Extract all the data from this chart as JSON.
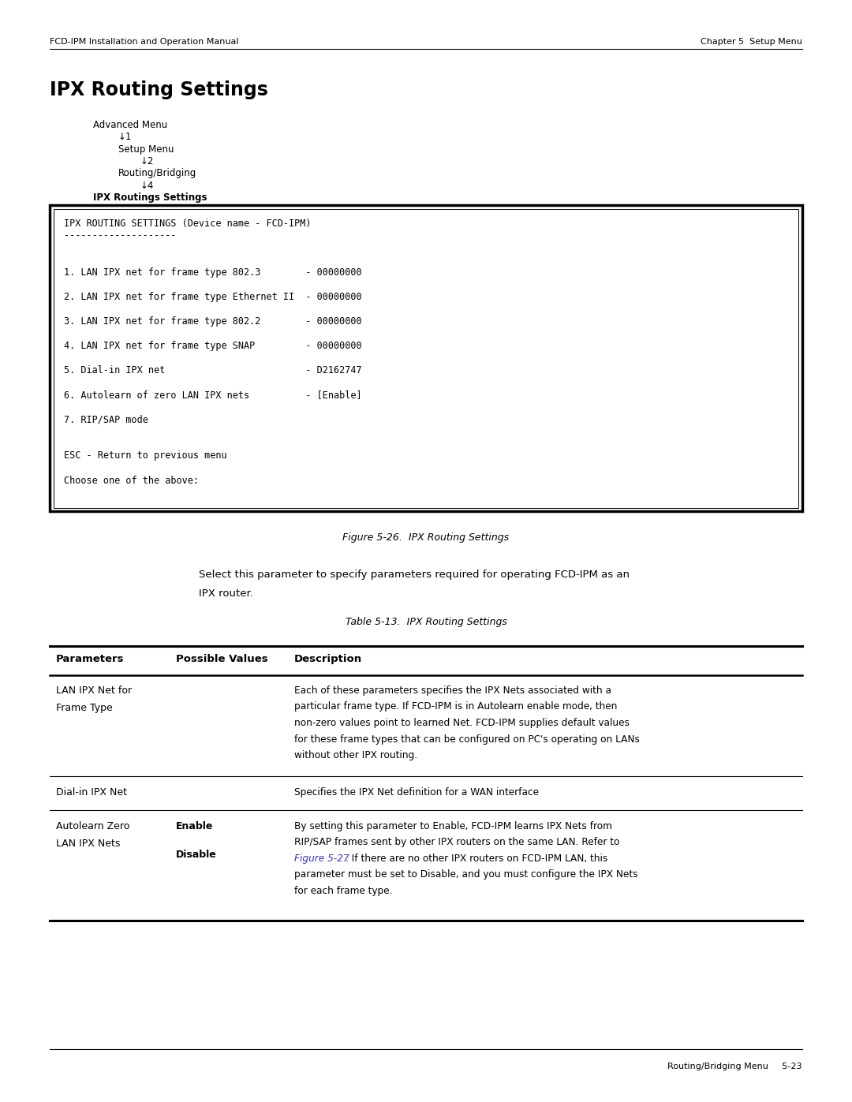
{
  "page_width": 10.8,
  "page_height": 13.97,
  "bg_color": "#ffffff",
  "header_left": "FCD-IPM Installation and Operation Manual",
  "header_right": "Chapter 5  Setup Menu",
  "footer_right": "Routing/Bridging Menu     5-23",
  "title": "IPX Routing Settings",
  "breadcrumb": [
    {
      "text": "Advanced Menu",
      "indent": 0
    },
    {
      "text": "↓1",
      "indent": 1
    },
    {
      "text": "Setup Menu",
      "indent": 1
    },
    {
      "text": "↓2",
      "indent": 2
    },
    {
      "text": "Routing/Bridging",
      "indent": 1
    },
    {
      "text": "↓4",
      "indent": 2
    },
    {
      "text": "IPX Routings Settings",
      "indent": 0,
      "bold": true
    }
  ],
  "terminal_lines": [
    "IPX ROUTING SETTINGS (Device name - FCD-IPM)",
    "--------------------",
    "",
    "",
    "1. LAN IPX net for frame type 802.3        - 00000000",
    "",
    "2. LAN IPX net for frame type Ethernet II  - 00000000",
    "",
    "3. LAN IPX net for frame type 802.2        - 00000000",
    "",
    "4. LAN IPX net for frame type SNAP         - 00000000",
    "",
    "5. Dial-in IPX net                         - D2162747",
    "",
    "6. Autolearn of zero LAN IPX nets          - [Enable]",
    "",
    "7. RIP/SAP mode",
    "",
    "",
    "ESC - Return to previous menu",
    "",
    "Choose one of the above:"
  ],
  "figure_caption": "Figure 5-26.  IPX Routing Settings",
  "paragraph_line1": "Select this parameter to specify parameters required for operating FCD-IPM as an",
  "paragraph_line2": "IPX router.",
  "table_caption": "Table 5-13.  IPX Routing Settings",
  "table_headers": [
    "Parameters",
    "Possible Values",
    "Description"
  ],
  "link_color": "#3333cc",
  "link_text": "Figure 5-27"
}
